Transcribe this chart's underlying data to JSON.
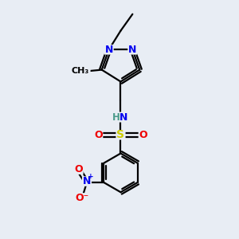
{
  "bg_color": "#e8edf4",
  "atom_colors": {
    "C": "#000000",
    "N": "#0000ee",
    "O": "#ee0000",
    "S": "#cccc00",
    "H": "#4a9a8a"
  },
  "bond_color": "#000000",
  "bond_width": 1.6,
  "fig_bg": "#e8edf4"
}
